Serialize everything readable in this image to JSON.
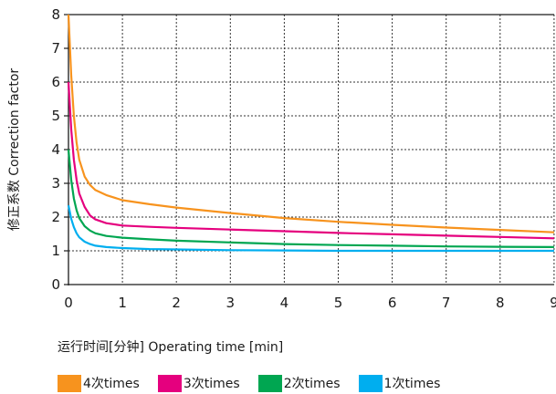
{
  "chart_data": {
    "type": "line",
    "xlabel": "运行时间[分钟] Operating time [min]",
    "ylabel": "修正系数 Correction factor",
    "xlim": [
      0,
      9
    ],
    "ylim": [
      0,
      8
    ],
    "x_ticks": [
      "0",
      "1",
      "2",
      "3",
      "4",
      "5",
      "6",
      "7",
      "8",
      "9"
    ],
    "y_ticks": [
      "0",
      "1",
      "2",
      "3",
      "4",
      "5",
      "6",
      "7",
      "8"
    ],
    "grid": true,
    "legend_position": "bottom",
    "series": [
      {
        "name": "4次times",
        "color": "#f7931e",
        "x": [
          0,
          0.05,
          0.1,
          0.15,
          0.2,
          0.3,
          0.4,
          0.5,
          0.7,
          1,
          1.5,
          2,
          3,
          4,
          5,
          6,
          7,
          8,
          9
        ],
        "y": [
          8.0,
          6.2,
          5.0,
          4.2,
          3.7,
          3.2,
          2.95,
          2.8,
          2.65,
          2.5,
          2.38,
          2.28,
          2.12,
          1.97,
          1.86,
          1.77,
          1.69,
          1.62,
          1.55
        ]
      },
      {
        "name": "3次times",
        "color": "#e5007e",
        "x": [
          0,
          0.05,
          0.1,
          0.15,
          0.2,
          0.3,
          0.4,
          0.5,
          0.7,
          1,
          1.5,
          2,
          3,
          4,
          5,
          6,
          7,
          8,
          9
        ],
        "y": [
          6.0,
          4.6,
          3.7,
          3.1,
          2.7,
          2.3,
          2.05,
          1.93,
          1.82,
          1.75,
          1.71,
          1.68,
          1.63,
          1.58,
          1.53,
          1.49,
          1.45,
          1.41,
          1.37
        ]
      },
      {
        "name": "2次times",
        "color": "#00a651",
        "x": [
          0,
          0.05,
          0.1,
          0.15,
          0.2,
          0.3,
          0.4,
          0.5,
          0.7,
          1,
          1.5,
          2,
          3,
          4,
          5,
          6,
          7,
          8,
          9
        ],
        "y": [
          4.0,
          3.1,
          2.55,
          2.2,
          1.97,
          1.73,
          1.6,
          1.52,
          1.44,
          1.39,
          1.34,
          1.3,
          1.25,
          1.2,
          1.17,
          1.15,
          1.13,
          1.12,
          1.11
        ]
      },
      {
        "name": "1次times",
        "color": "#00aeef",
        "x": [
          0,
          0.05,
          0.1,
          0.15,
          0.2,
          0.3,
          0.4,
          0.5,
          0.7,
          1,
          1.5,
          2,
          3,
          4,
          5,
          6,
          7,
          8,
          9
        ],
        "y": [
          2.35,
          1.95,
          1.7,
          1.52,
          1.4,
          1.27,
          1.2,
          1.15,
          1.11,
          1.08,
          1.05,
          1.04,
          1.02,
          1.01,
          1.0,
          1.0,
          1.0,
          1.0,
          1.0
        ]
      }
    ]
  }
}
